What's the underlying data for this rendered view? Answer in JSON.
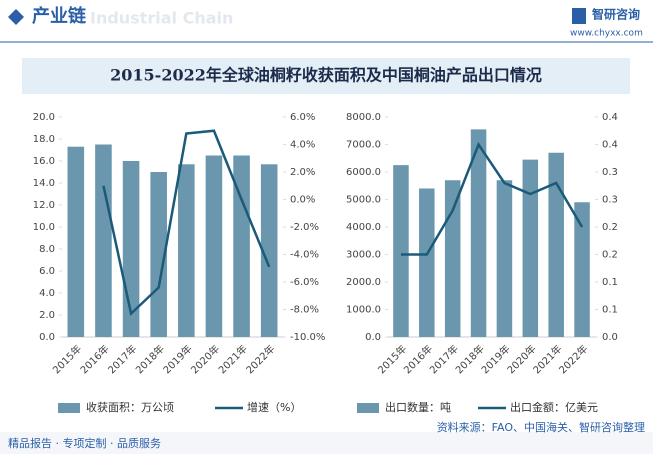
{
  "header": {
    "title": "产业链",
    "watermark": "Industrial Chain",
    "brand": "智研咨询",
    "url": "www.chyxx.com"
  },
  "title": "2015-2022年全球油桐籽收获面积及中国桐油产品出口情况",
  "footer": {
    "left": "精品报告 · 专项定制 · 品质服务",
    "source": "资料来源：FAO、中国海关、智研咨询整理"
  },
  "chart_data": [
    {
      "type": "bar",
      "categories": [
        "2015年",
        "2016年",
        "2017年",
        "2018年",
        "2019年",
        "2020年",
        "2021年",
        "2022年"
      ],
      "series": [
        {
          "name": "收获面积：万公顷",
          "type": "bar",
          "color": "#6a97ae",
          "values": [
            17.3,
            17.5,
            16.0,
            15.0,
            15.7,
            16.5,
            16.5,
            15.7
          ]
        },
        {
          "name": "增速（%）",
          "type": "line",
          "axis": "y2",
          "color": "#1b5a78",
          "values": [
            null,
            1.0,
            -8.3,
            -6.4,
            4.8,
            5.0,
            0.0,
            -4.9
          ]
        }
      ],
      "ylim": [
        0,
        20
      ],
      "yticks": [
        {
          "value": 0,
          "label": "0.0"
        },
        {
          "value": 2,
          "label": "2.0"
        },
        {
          "value": 4,
          "label": "4.0"
        },
        {
          "value": 6,
          "label": "6.0"
        },
        {
          "value": 8,
          "label": "8.0"
        },
        {
          "value": 10,
          "label": "10.0"
        },
        {
          "value": 12,
          "label": "12.0"
        },
        {
          "value": 14,
          "label": "14.0"
        },
        {
          "value": 16,
          "label": "16.0"
        },
        {
          "value": 18,
          "label": "18.0"
        },
        {
          "value": 20,
          "label": "20.0"
        }
      ],
      "y2lim": [
        -10,
        6
      ],
      "y2ticks": [
        {
          "value": -10,
          "label": "-10.0%"
        },
        {
          "value": -8,
          "label": "-8.0%"
        },
        {
          "value": -6,
          "label": "-6.0%"
        },
        {
          "value": -4,
          "label": "-4.0%"
        },
        {
          "value": -2,
          "label": "-2.0%"
        },
        {
          "value": 0,
          "label": "0.0%"
        },
        {
          "value": 2,
          "label": "2.0%"
        },
        {
          "value": 4,
          "label": "4.0%"
        },
        {
          "value": 6,
          "label": "6.0%"
        }
      ]
    },
    {
      "type": "bar",
      "categories": [
        "2015年",
        "2016年",
        "2017年",
        "2018年",
        "2019年",
        "2020年",
        "2021年",
        "2022年"
      ],
      "series": [
        {
          "name": "出口数量：吨",
          "type": "bar",
          "color": "#6a97ae",
          "values": [
            6250,
            5400,
            5700,
            7550,
            5700,
            6450,
            6700,
            4900
          ]
        },
        {
          "name": "出口金额：亿美元",
          "type": "line",
          "axis": "y2",
          "color": "#1b5a78",
          "values": [
            0.15,
            0.15,
            0.23,
            0.35,
            0.28,
            0.26,
            0.28,
            0.2
          ]
        }
      ],
      "ylim": [
        0,
        8000
      ],
      "yticks": [
        {
          "value": 0,
          "label": "0.0"
        },
        {
          "value": 1000,
          "label": "1000.0"
        },
        {
          "value": 2000,
          "label": "2000.0"
        },
        {
          "value": 3000,
          "label": "3000.0"
        },
        {
          "value": 4000,
          "label": "4000.0"
        },
        {
          "value": 5000,
          "label": "5000.0"
        },
        {
          "value": 6000,
          "label": "6000.0"
        },
        {
          "value": 7000,
          "label": "7000.0"
        },
        {
          "value": 8000,
          "label": "8000.0"
        }
      ],
      "y2lim": [
        0,
        0.4
      ],
      "y2ticks": [
        {
          "value": 0,
          "label": "0.0"
        },
        {
          "value": 0.05,
          "label": "0.1"
        },
        {
          "value": 0.1,
          "label": "0.1"
        },
        {
          "value": 0.15,
          "label": "0.2"
        },
        {
          "value": 0.2,
          "label": "0.2"
        },
        {
          "value": 0.25,
          "label": "0.3"
        },
        {
          "value": 0.3,
          "label": "0.3"
        },
        {
          "value": 0.35,
          "label": "0.4"
        },
        {
          "value": 0.4,
          "label": "0.4"
        }
      ]
    }
  ]
}
